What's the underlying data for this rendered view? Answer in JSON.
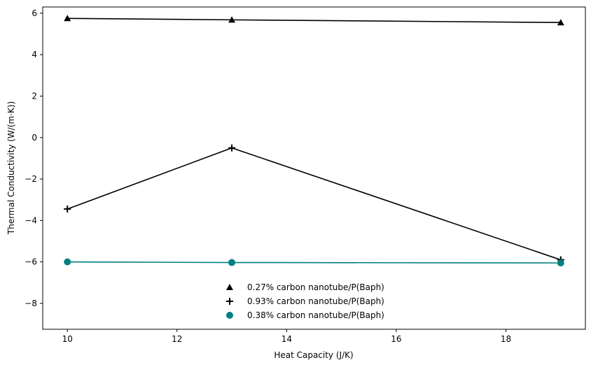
{
  "chart_data": {
    "type": "line",
    "title": "",
    "xlabel": "Heat Capacity (J/K)",
    "ylabel": "Thermal Conductivity (W/(m·K))",
    "xlim": [
      9.55,
      19.45
    ],
    "ylim": [
      -9.25,
      6.3
    ],
    "xticks": [
      10,
      12,
      14,
      16,
      18
    ],
    "yticks": [
      -8,
      -6,
      -4,
      -2,
      0,
      2,
      4,
      6
    ],
    "x": [
      10,
      13,
      19
    ],
    "grid": false,
    "legend_position": "lower-center",
    "series": [
      {
        "name": "0.27% carbon nanotube/P(Baph)",
        "values": [
          5.75,
          5.68,
          5.55
        ],
        "marker": "triangle",
        "color": "#000000"
      },
      {
        "name": "0.93% carbon nanotube/P(Baph)",
        "values": [
          -3.45,
          -0.5,
          -5.9
        ],
        "marker": "plus",
        "color": "#000000"
      },
      {
        "name": "0.38% carbon nanotube/P(Baph)",
        "values": [
          -6.0,
          -6.03,
          -6.05
        ],
        "marker": "circle",
        "color": "#008080"
      }
    ]
  }
}
